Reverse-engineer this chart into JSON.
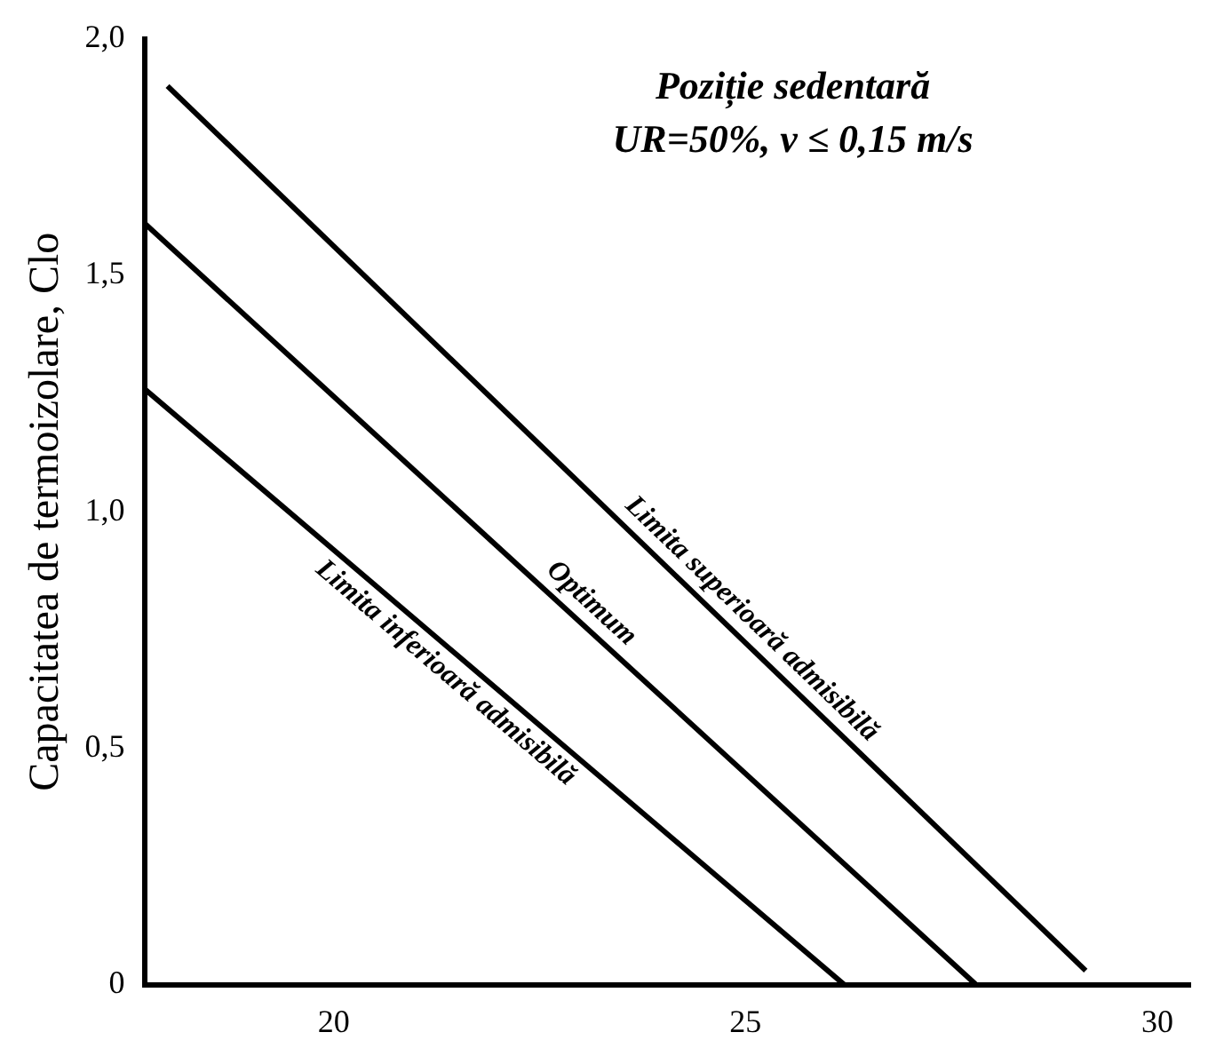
{
  "chart_data": {
    "type": "line",
    "title": "Poziție sedentară",
    "subtitle": "UR=50%, v ≤ 0,15 m/s",
    "ylabel": "Capacitatea de termoizolare, Clo",
    "xlim": [
      17.7,
      30.4
    ],
    "xticks": [
      20,
      25,
      30
    ],
    "ylim": [
      0,
      2.0
    ],
    "yticks": [
      0,
      {
        "value": 0.5,
        "label": "0,5"
      },
      {
        "value": 1.0,
        "label": "1,0"
      },
      {
        "value": 1.5,
        "label": "1,5"
      },
      {
        "value": 2.0,
        "label": "2,0"
      }
    ],
    "grid": false,
    "legend": false,
    "marker": "none",
    "line_style": "solid",
    "series": [
      {
        "name": "Limita superioară admisibilă",
        "color": "#000000",
        "x": [
          17.98,
          29.13
        ],
        "values": [
          1.9,
          0.03
        ]
      },
      {
        "name": "Optimum",
        "color": "#000000",
        "x": [
          17.7,
          27.8
        ],
        "values": [
          1.61,
          0
        ]
      },
      {
        "name": "Limita inferioară admisibilă",
        "color": "#000000",
        "x": [
          17.7,
          26.2
        ],
        "values": [
          1.26,
          0
        ]
      }
    ]
  }
}
